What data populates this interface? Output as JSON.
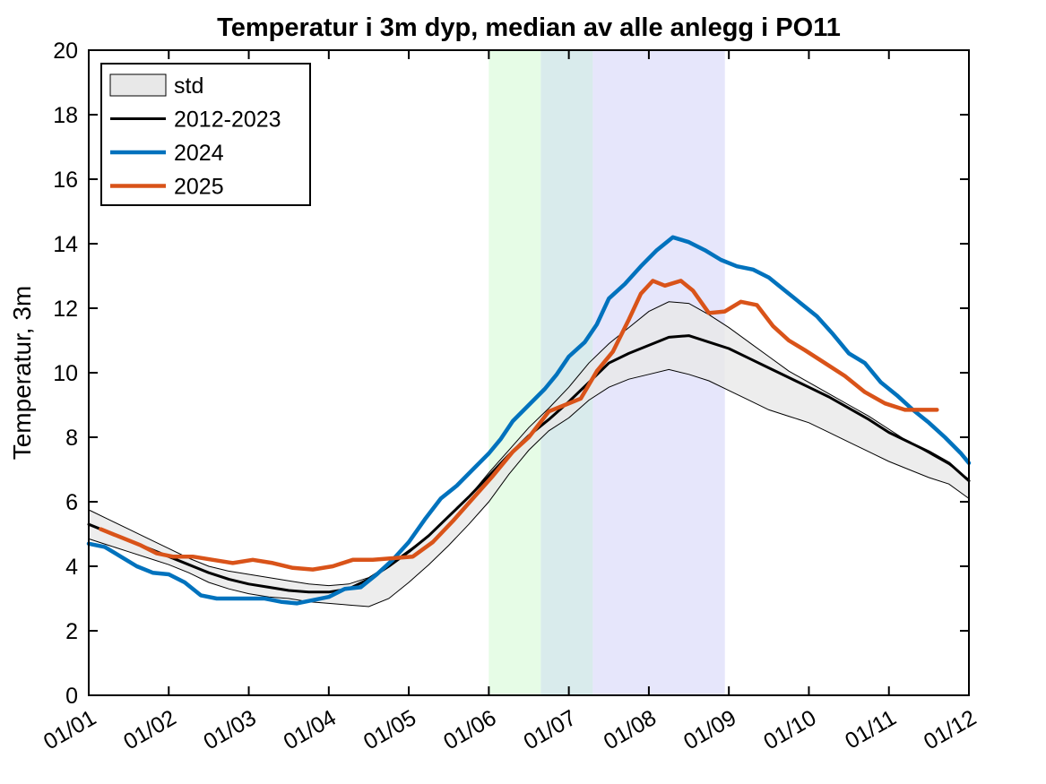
{
  "chart_data": {
    "type": "line",
    "title": "Temperatur i 3m dyp, median av alle anlegg i PO11",
    "xlabel": "",
    "ylabel": "Temperatur, 3m",
    "xlim": [
      0,
      11
    ],
    "ylim": [
      0,
      20
    ],
    "y_ticks": [
      0,
      2,
      4,
      6,
      8,
      10,
      12,
      14,
      16,
      18,
      20
    ],
    "x_ticks": [
      0,
      1,
      2,
      3,
      4,
      5,
      6,
      7,
      8,
      9,
      10,
      11
    ],
    "x_tick_labels": [
      "01/01",
      "01/02",
      "01/03",
      "01/04",
      "01/05",
      "01/06",
      "01/07",
      "01/08",
      "01/09",
      "01/10",
      "01/11",
      "01/12"
    ],
    "grid": false,
    "legend_position": "top-left",
    "shaded_periods": [
      {
        "x0": 5.0,
        "x1": 5.65,
        "color": "#e6fce6"
      },
      {
        "x0": 5.65,
        "x1": 6.3,
        "color": "#d9ebec"
      },
      {
        "x0": 6.3,
        "x1": 7.95,
        "color": "#e6e6fb"
      }
    ],
    "band": {
      "name": "std",
      "fill": "#e8e8e8",
      "x": [
        0,
        0.25,
        0.5,
        0.75,
        1,
        1.25,
        1.5,
        1.75,
        2,
        2.25,
        2.5,
        2.75,
        3,
        3.25,
        3.5,
        3.75,
        4,
        4.25,
        4.5,
        4.75,
        5,
        5.25,
        5.5,
        5.75,
        6,
        6.25,
        6.5,
        6.75,
        7,
        7.25,
        7.5,
        7.75,
        8,
        8.25,
        8.5,
        8.75,
        9,
        9.25,
        9.5,
        9.75,
        10,
        10.25,
        10.5,
        10.75,
        11
      ],
      "upper": [
        5.75,
        5.45,
        5.15,
        4.85,
        4.55,
        4.25,
        4.0,
        3.85,
        3.75,
        3.65,
        3.55,
        3.45,
        3.4,
        3.45,
        3.65,
        4.05,
        4.5,
        4.95,
        5.55,
        6.15,
        6.9,
        7.6,
        8.3,
        8.9,
        9.55,
        10.3,
        10.9,
        11.4,
        11.9,
        12.2,
        12.15,
        11.8,
        11.4,
        10.95,
        10.5,
        10.05,
        9.7,
        9.35,
        9.0,
        8.65,
        8.25,
        7.85,
        7.5,
        7.15,
        6.7
      ],
      "lower": [
        4.85,
        4.65,
        4.45,
        4.25,
        4.05,
        3.8,
        3.5,
        3.3,
        3.15,
        3.05,
        3.0,
        2.9,
        2.85,
        2.8,
        2.75,
        3.0,
        3.5,
        4.05,
        4.65,
        5.3,
        6.0,
        6.85,
        7.6,
        8.2,
        8.6,
        9.15,
        9.55,
        9.8,
        9.95,
        10.1,
        9.95,
        9.75,
        9.45,
        9.15,
        8.85,
        8.65,
        8.45,
        8.15,
        7.85,
        7.55,
        7.25,
        7.0,
        6.75,
        6.55,
        6.1
      ]
    },
    "series": [
      {
        "name": "2012-2023",
        "color": "#000000",
        "x": [
          0,
          0.25,
          0.5,
          0.75,
          1,
          1.25,
          1.5,
          1.75,
          2,
          2.25,
          2.5,
          2.75,
          3,
          3.25,
          3.5,
          3.75,
          4,
          4.25,
          4.5,
          4.75,
          5,
          5.25,
          5.5,
          5.75,
          6,
          6.25,
          6.5,
          6.75,
          7,
          7.25,
          7.5,
          7.75,
          8,
          8.25,
          8.5,
          8.75,
          9,
          9.25,
          9.5,
          9.75,
          10,
          10.25,
          10.5,
          10.75,
          11
        ],
        "y": [
          5.3,
          5.05,
          4.8,
          4.55,
          4.3,
          4.05,
          3.8,
          3.6,
          3.45,
          3.35,
          3.25,
          3.2,
          3.2,
          3.3,
          3.6,
          4.0,
          4.45,
          4.95,
          5.55,
          6.15,
          6.8,
          7.45,
          8.05,
          8.55,
          9.1,
          9.7,
          10.3,
          10.6,
          10.85,
          11.1,
          11.15,
          10.95,
          10.75,
          10.45,
          10.15,
          9.85,
          9.55,
          9.25,
          8.9,
          8.55,
          8.15,
          7.85,
          7.55,
          7.2,
          6.65
        ]
      },
      {
        "name": "2024",
        "color": "#0072bd",
        "x": [
          0,
          0.2,
          0.4,
          0.6,
          0.8,
          1.0,
          1.2,
          1.4,
          1.6,
          1.8,
          2.0,
          2.2,
          2.4,
          2.6,
          2.8,
          3.0,
          3.2,
          3.4,
          3.6,
          3.8,
          4.0,
          4.2,
          4.4,
          4.6,
          4.8,
          5.0,
          5.15,
          5.3,
          5.5,
          5.7,
          5.85,
          6.0,
          6.2,
          6.35,
          6.5,
          6.7,
          6.9,
          7.1,
          7.3,
          7.5,
          7.7,
          7.9,
          8.1,
          8.3,
          8.5,
          8.7,
          8.9,
          9.1,
          9.3,
          9.5,
          9.7,
          9.9,
          10.1,
          10.3,
          10.5,
          10.7,
          10.9,
          11.0
        ],
        "y": [
          4.7,
          4.6,
          4.3,
          4.0,
          3.8,
          3.75,
          3.5,
          3.1,
          3.0,
          3.0,
          3.0,
          3.0,
          2.9,
          2.85,
          2.95,
          3.05,
          3.3,
          3.35,
          3.75,
          4.2,
          4.75,
          5.45,
          6.1,
          6.5,
          7.0,
          7.5,
          7.95,
          8.5,
          9.0,
          9.5,
          9.95,
          10.5,
          10.95,
          11.5,
          12.3,
          12.75,
          13.3,
          13.8,
          14.2,
          14.05,
          13.8,
          13.5,
          13.3,
          13.2,
          12.95,
          12.55,
          12.15,
          11.75,
          11.2,
          10.6,
          10.3,
          9.7,
          9.3,
          8.85,
          8.45,
          8.0,
          7.5,
          7.2
        ]
      },
      {
        "name": "2025",
        "color": "#d95319",
        "x": [
          0.15,
          0.4,
          0.65,
          0.85,
          1.05,
          1.3,
          1.55,
          1.8,
          2.05,
          2.3,
          2.55,
          2.8,
          3.05,
          3.3,
          3.55,
          3.8,
          4.05,
          4.3,
          4.55,
          4.8,
          5.05,
          5.3,
          5.5,
          5.75,
          5.95,
          6.15,
          6.35,
          6.55,
          6.75,
          6.9,
          7.05,
          7.2,
          7.4,
          7.55,
          7.75,
          7.95,
          8.15,
          8.35,
          8.55,
          8.75,
          8.95,
          9.2,
          9.45,
          9.7,
          9.95,
          10.2,
          10.45,
          10.6
        ],
        "y": [
          5.15,
          4.9,
          4.65,
          4.4,
          4.3,
          4.3,
          4.2,
          4.1,
          4.2,
          4.1,
          3.95,
          3.9,
          4.0,
          4.2,
          4.2,
          4.25,
          4.3,
          4.75,
          5.4,
          6.1,
          6.8,
          7.55,
          8.0,
          8.8,
          9.0,
          9.2,
          10.05,
          10.65,
          11.65,
          12.45,
          12.85,
          12.7,
          12.85,
          12.55,
          11.85,
          11.9,
          12.2,
          12.1,
          11.45,
          11.0,
          10.7,
          10.3,
          9.9,
          9.4,
          9.05,
          8.85,
          8.85,
          8.85
        ]
      }
    ]
  }
}
